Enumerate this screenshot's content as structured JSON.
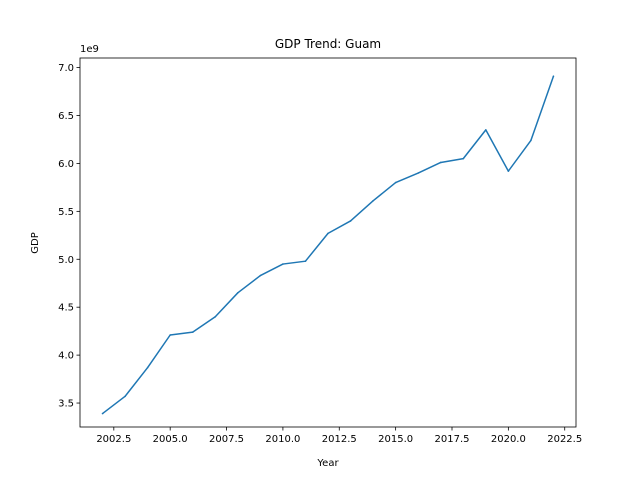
{
  "chart_data": {
    "type": "line",
    "title": "GDP Trend: Guam",
    "xlabel": "Year",
    "ylabel": "GDP",
    "y_offset_label": "1e9",
    "xlim": [
      2001,
      2023
    ],
    "ylim": [
      3.25,
      7.1
    ],
    "x_ticks": [
      2002.5,
      2005.0,
      2007.5,
      2010.0,
      2012.5,
      2015.0,
      2017.5,
      2020.0,
      2022.5
    ],
    "x_tick_labels": [
      "2002.5",
      "2005.0",
      "2007.5",
      "2010.0",
      "2012.5",
      "2015.0",
      "2017.5",
      "2020.0",
      "2022.5"
    ],
    "y_ticks": [
      3.5,
      4.0,
      4.5,
      5.0,
      5.5,
      6.0,
      6.5,
      7.0
    ],
    "y_tick_labels": [
      "3.5",
      "4.0",
      "4.5",
      "5.0",
      "5.5",
      "6.0",
      "6.5",
      "7.0"
    ],
    "grid": false,
    "line_color": "#1f77b4",
    "series": [
      {
        "x": [
          2002,
          2003,
          2004,
          2005,
          2006,
          2007,
          2008,
          2009,
          2010,
          2011,
          2012,
          2013,
          2014,
          2015,
          2016,
          2017,
          2018,
          2019,
          2020,
          2021,
          2022
        ],
        "values": [
          3.39,
          3.57,
          3.87,
          4.21,
          4.24,
          4.4,
          4.65,
          4.83,
          4.95,
          4.98,
          5.27,
          5.4,
          5.61,
          5.8,
          5.9,
          6.01,
          6.05,
          6.35,
          5.92,
          6.24,
          6.91
        ]
      }
    ]
  }
}
